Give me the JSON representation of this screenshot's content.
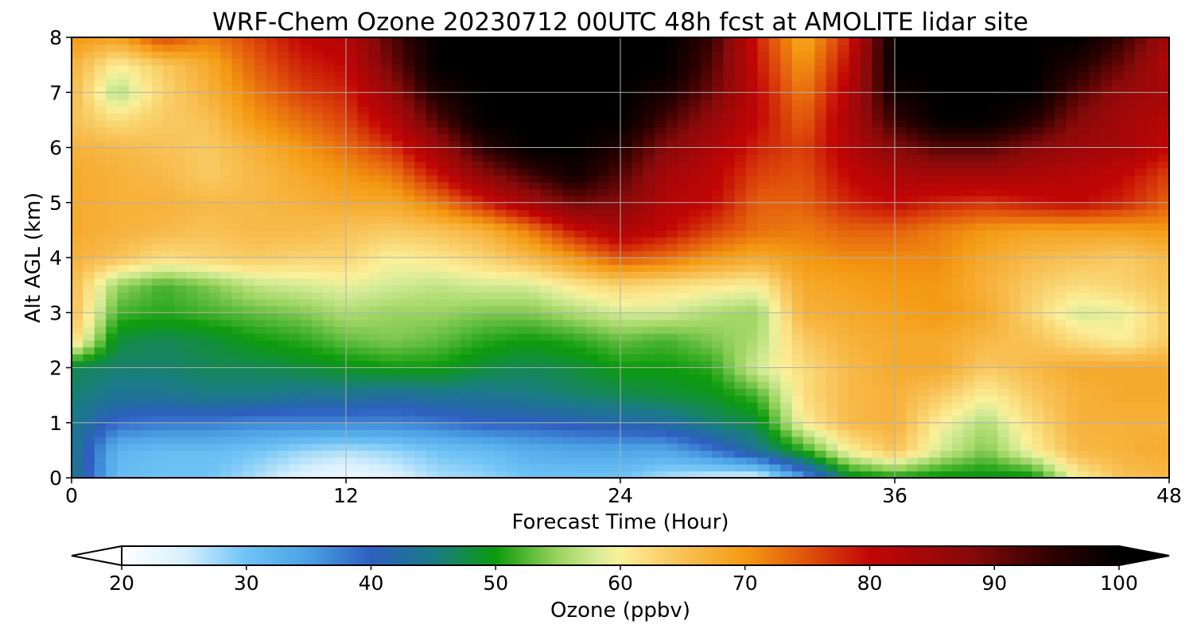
{
  "chart_data": {
    "type": "heatmap",
    "title": "WRF-Chem Ozone  20230712 00UTC 48h fcst at AMOLITE lidar site",
    "xlabel": "Forecast Time (Hour)",
    "ylabel": "Alt AGL (km)",
    "xlim": [
      0,
      48
    ],
    "ylim": [
      0,
      8
    ],
    "xticks": [
      0,
      12,
      24,
      36,
      48
    ],
    "yticks": [
      0,
      1,
      2,
      3,
      4,
      5,
      6,
      7,
      8
    ],
    "grid": true,
    "colorbar": {
      "label": "Ozone  (ppbv)",
      "orientation": "horizontal",
      "placement": "bottom",
      "range": [
        20,
        100
      ],
      "extend": "both",
      "ticks": [
        20,
        30,
        40,
        50,
        60,
        70,
        80,
        90,
        100
      ],
      "color_stops": [
        {
          "value": 20,
          "color": "#ffffff"
        },
        {
          "value": 25,
          "color": "#d8f0fc"
        },
        {
          "value": 30,
          "color": "#6ec3f6"
        },
        {
          "value": 35,
          "color": "#4aa0e4"
        },
        {
          "value": 40,
          "color": "#2e5fc1"
        },
        {
          "value": 45,
          "color": "#1a7a86"
        },
        {
          "value": 50,
          "color": "#0c9b0c"
        },
        {
          "value": 55,
          "color": "#9bd460"
        },
        {
          "value": 58,
          "color": "#d4eb96"
        },
        {
          "value": 60,
          "color": "#fbf09a"
        },
        {
          "value": 65,
          "color": "#f8c155"
        },
        {
          "value": 70,
          "color": "#f49a12"
        },
        {
          "value": 75,
          "color": "#e0520c"
        },
        {
          "value": 80,
          "color": "#c20505"
        },
        {
          "value": 88,
          "color": "#880a0a"
        },
        {
          "value": 95,
          "color": "#2a0000"
        },
        {
          "value": 100,
          "color": "#000000"
        }
      ]
    },
    "x_hours": [
      0,
      2,
      4,
      6,
      8,
      10,
      12,
      14,
      16,
      18,
      20,
      22,
      24,
      26,
      28,
      30,
      32,
      34,
      36,
      38,
      40,
      42,
      44,
      46,
      48
    ],
    "y_km": [
      0,
      0.5,
      1,
      1.5,
      2,
      2.5,
      3,
      3.5,
      4,
      4.5,
      5,
      5.5,
      6,
      6.5,
      7,
      7.5,
      8
    ],
    "values_ppbv": [
      [
        45,
        31,
        30,
        30,
        27,
        24,
        22,
        24,
        27,
        28,
        30,
        30,
        30,
        27,
        25,
        24,
        35,
        48,
        50,
        49,
        49,
        49,
        60,
        65,
        66
      ],
      [
        45,
        32,
        31,
        31,
        30,
        28,
        27,
        28,
        30,
        31,
        33,
        34,
        34,
        34,
        38,
        44,
        51,
        60,
        65,
        58,
        54,
        60,
        66,
        67,
        68
      ],
      [
        45,
        39,
        38,
        38,
        37,
        37,
        37,
        37,
        38,
        40,
        40,
        41,
        42,
        43,
        46,
        48,
        60,
        66,
        67,
        60,
        56,
        62,
        67,
        67,
        67
      ],
      [
        46,
        44,
        44,
        45,
        45,
        44,
        44,
        43,
        44,
        44,
        45,
        46,
        47,
        48,
        49,
        52,
        62,
        66,
        67,
        64,
        60,
        64,
        67,
        68,
        68
      ],
      [
        47,
        46,
        46,
        47,
        47,
        48,
        49,
        50,
        50,
        48,
        47,
        48,
        50,
        50,
        51,
        58,
        62,
        66,
        68,
        68,
        64,
        66,
        68,
        68,
        68
      ],
      [
        63,
        48,
        47,
        48,
        50,
        51,
        53,
        54,
        53,
        51,
        50,
        51,
        53,
        52,
        54,
        56,
        64,
        67,
        68,
        68,
        66,
        65,
        62,
        60,
        64
      ],
      [
        66,
        52,
        51,
        52,
        53,
        54,
        56,
        55,
        55,
        54,
        54,
        56,
        58,
        58,
        56,
        55,
        67,
        68,
        69,
        70,
        68,
        63,
        58,
        59,
        64
      ],
      [
        66,
        55,
        52,
        54,
        57,
        58,
        59,
        58,
        57,
        58,
        58,
        61,
        63,
        62,
        61,
        60,
        68,
        69,
        70,
        70,
        67,
        64,
        62,
        63,
        65
      ],
      [
        67,
        65,
        62,
        63,
        64,
        63,
        63,
        60,
        61,
        63,
        66,
        70,
        75,
        73,
        70,
        68,
        70,
        71,
        71,
        71,
        68,
        66,
        65,
        64,
        66
      ],
      [
        68,
        67,
        66,
        65,
        66,
        66,
        65,
        64,
        65,
        67,
        72,
        79,
        83,
        80,
        76,
        73,
        72,
        74,
        74,
        72,
        70,
        69,
        69,
        69,
        70
      ],
      [
        68,
        67,
        67,
        66,
        66,
        67,
        68,
        68,
        72,
        78,
        84,
        90,
        88,
        82,
        80,
        74,
        74,
        78,
        80,
        78,
        77,
        79,
        80,
        78,
        74
      ],
      [
        68,
        67,
        66,
        64,
        66,
        68,
        70,
        72,
        79,
        87,
        93,
        98,
        92,
        84,
        81,
        76,
        75,
        80,
        83,
        84,
        84,
        83,
        82,
        80,
        76
      ],
      [
        67,
        66,
        65,
        64,
        67,
        70,
        73,
        77,
        85,
        95,
        100,
        100,
        96,
        88,
        83,
        78,
        76,
        82,
        88,
        92,
        92,
        88,
        85,
        84,
        80
      ],
      [
        65,
        62,
        64,
        65,
        70,
        73,
        76,
        82,
        92,
        100,
        100,
        100,
        100,
        93,
        86,
        80,
        74,
        83,
        94,
        100,
        100,
        96,
        88,
        84,
        82
      ],
      [
        66,
        56,
        63,
        67,
        72,
        76,
        78,
        86,
        97,
        100,
        100,
        100,
        100,
        97,
        90,
        80,
        72,
        82,
        98,
        100,
        100,
        100,
        92,
        86,
        84
      ],
      [
        67,
        60,
        64,
        68,
        74,
        78,
        80,
        90,
        100,
        100,
        100,
        100,
        100,
        100,
        92,
        79,
        70,
        80,
        100,
        100,
        100,
        100,
        96,
        90,
        82
      ],
      [
        70,
        69,
        76,
        72,
        76,
        80,
        82,
        92,
        100,
        100,
        100,
        100,
        100,
        100,
        94,
        78,
        68,
        78,
        100,
        100,
        100,
        100,
        100,
        94,
        84
      ]
    ]
  }
}
